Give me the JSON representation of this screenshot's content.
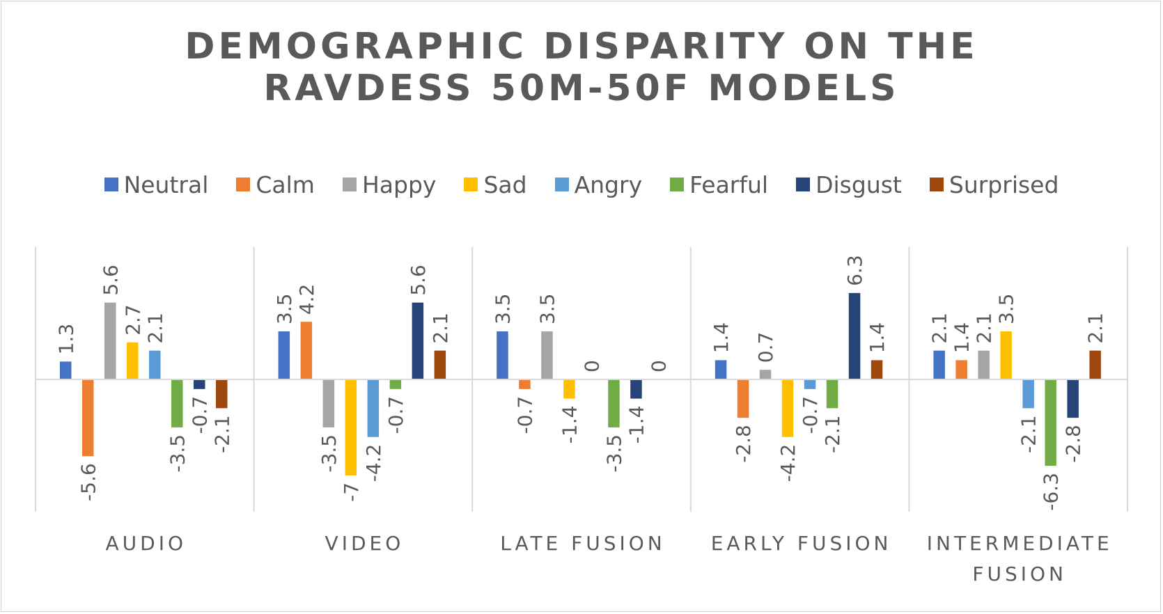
{
  "chart_data": {
    "type": "bar",
    "title": [
      "DEMOGRAPHIC DISPARITY ON THE",
      "RAVDESS 50M-50F MODELS"
    ],
    "xlabel": "",
    "ylabel": "",
    "ylim": [
      -10.5,
      10.5
    ],
    "legend_position": "top",
    "grid": "vertical category separators",
    "categories": [
      [
        "AUDIO"
      ],
      [
        "VIDEO"
      ],
      [
        "LATE FUSION"
      ],
      [
        "EARLY FUSION"
      ],
      [
        "INTERMEDIATE",
        "FUSION"
      ]
    ],
    "series": [
      {
        "name": "Neutral",
        "color": "#4472C4",
        "values": [
          1.3,
          3.5,
          3.5,
          1.4,
          2.1
        ],
        "labels": [
          "1.3",
          "3.5",
          "3.5",
          "1.4",
          "2.1"
        ]
      },
      {
        "name": "Calm",
        "color": "#ED7D31",
        "values": [
          -5.6,
          4.2,
          -0.7,
          -2.8,
          1.4
        ],
        "labels": [
          "-5.6",
          "4.2",
          "-0.7",
          "-2.8",
          "1.4"
        ]
      },
      {
        "name": "Happy",
        "color": "#A5A5A5",
        "values": [
          5.6,
          -3.5,
          3.5,
          0.7,
          2.1
        ],
        "labels": [
          "5.6",
          "-3.5",
          "3.5",
          "0.7",
          "2.1"
        ]
      },
      {
        "name": "Sad",
        "color": "#FFC000",
        "values": [
          2.7,
          -7,
          -1.4,
          -4.2,
          3.5
        ],
        "labels": [
          "2.7",
          "-7",
          "-1.4",
          "-4.2",
          "3.5"
        ]
      },
      {
        "name": "Angry",
        "color": "#5B9BD5",
        "values": [
          2.1,
          -4.2,
          0,
          -0.7,
          -2.1
        ],
        "labels": [
          "2.1",
          "-4.2",
          "0",
          "-0.7",
          "-2.1"
        ]
      },
      {
        "name": "Fearful",
        "color": "#70AD47",
        "values": [
          -3.5,
          -0.7,
          -3.5,
          -2.1,
          -6.3
        ],
        "labels": [
          "-3.5",
          "-0.7",
          "-3.5",
          "-2.1",
          "-6.3"
        ]
      },
      {
        "name": "Disgust",
        "color": "#264478",
        "values": [
          -0.7,
          5.6,
          -1.4,
          6.3,
          -2.8
        ],
        "labels": [
          "-0.7",
          "5.6",
          "-1.4",
          "6.3",
          "-2.8"
        ]
      },
      {
        "name": "Surprised",
        "color": "#9E480E",
        "values": [
          -2.1,
          2.1,
          0,
          1.4,
          2.1
        ],
        "labels": [
          "-2.1",
          "2.1",
          "0",
          "1.4",
          "2.1"
        ]
      }
    ]
  }
}
